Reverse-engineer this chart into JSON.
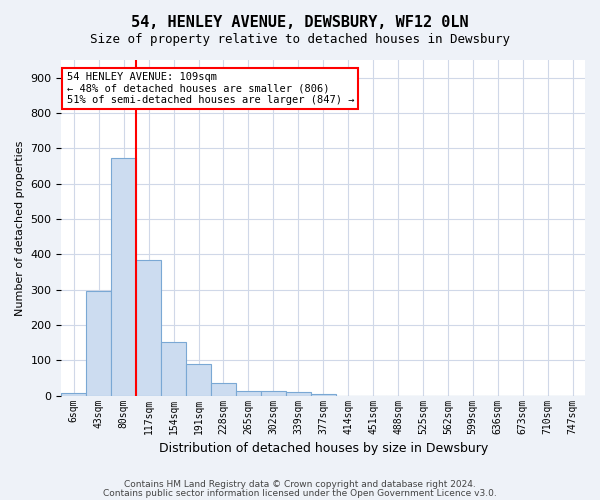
{
  "title": "54, HENLEY AVENUE, DEWSBURY, WF12 0LN",
  "subtitle": "Size of property relative to detached houses in Dewsbury",
  "xlabel": "Distribution of detached houses by size in Dewsbury",
  "ylabel": "Number of detached properties",
  "footer_line1": "Contains HM Land Registry data © Crown copyright and database right 2024.",
  "footer_line2": "Contains public sector information licensed under the Open Government Licence v3.0.",
  "bin_labels": [
    "6sqm",
    "43sqm",
    "80sqm",
    "117sqm",
    "154sqm",
    "191sqm",
    "228sqm",
    "265sqm",
    "302sqm",
    "339sqm",
    "377sqm",
    "414sqm",
    "451sqm",
    "488sqm",
    "525sqm",
    "562sqm",
    "599sqm",
    "636sqm",
    "673sqm",
    "710sqm",
    "747sqm"
  ],
  "bar_values": [
    8,
    295,
    672,
    385,
    153,
    90,
    37,
    14,
    13,
    10,
    5,
    0,
    0,
    0,
    0,
    0,
    0,
    0,
    0,
    0,
    0
  ],
  "bar_color": "#ccdcf0",
  "bar_edge_color": "#7aa8d4",
  "annotation_line1": "54 HENLEY AVENUE: 109sqm",
  "annotation_line2": "← 48% of detached houses are smaller (806)",
  "annotation_line3": "51% of semi-detached houses are larger (847) →",
  "annotation_box_color": "white",
  "annotation_box_edge": "red",
  "red_line_x": 2.5,
  "ylim": [
    0,
    950
  ],
  "yticks": [
    0,
    100,
    200,
    300,
    400,
    500,
    600,
    700,
    800,
    900
  ],
  "background_color": "#eef2f8",
  "plot_bg_color": "#ffffff",
  "grid_color": "#d0d8e8"
}
